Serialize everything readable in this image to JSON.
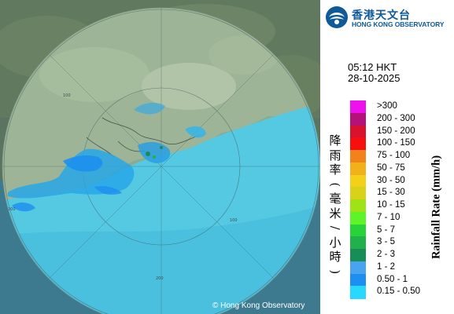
{
  "map": {
    "range_labels": [
      "100",
      "200",
      "100",
      "200"
    ],
    "copyright": "© Hong Kong Observatory"
  },
  "header": {
    "org_name_zh": "香港天文台",
    "org_name_en": "HONG KONG OBSERVATORY",
    "logo_icon": "hko-logo-icon"
  },
  "observation": {
    "time": "05:12 HKT",
    "date": "28-10-2025"
  },
  "legend": {
    "title_zh": "降雨率(毫米/小時)",
    "title_en": "Rainfall Rate (mm/h)",
    "classes": [
      {
        "label": ">300",
        "color": "#ee11ee"
      },
      {
        "label": "200 - 300",
        "color": "#b5117a"
      },
      {
        "label": "150 - 200",
        "color": "#d7112e"
      },
      {
        "label": "100 - 150",
        "color": "#f70f0f"
      },
      {
        "label": "75 - 100",
        "color": "#f2821c"
      },
      {
        "label": "50 - 75",
        "color": "#f0b11b"
      },
      {
        "label": "30 - 50",
        "color": "#f3d11a"
      },
      {
        "label": "15 - 30",
        "color": "#dad21a"
      },
      {
        "label": "10 - 15",
        "color": "#9fe315"
      },
      {
        "label": "7 - 10",
        "color": "#5ff42a"
      },
      {
        "label": "5 - 7",
        "color": "#27d339"
      },
      {
        "label": "3 - 5",
        "color": "#21b04a"
      },
      {
        "label": "2 - 3",
        "color": "#188d56"
      },
      {
        "label": "1 - 2",
        "color": "#4aa3ee"
      },
      {
        "label": "0.50 - 1",
        "color": "#1d8ff0"
      },
      {
        "label": "0.15 - 0.50",
        "color": "#28d8ff"
      }
    ]
  }
}
